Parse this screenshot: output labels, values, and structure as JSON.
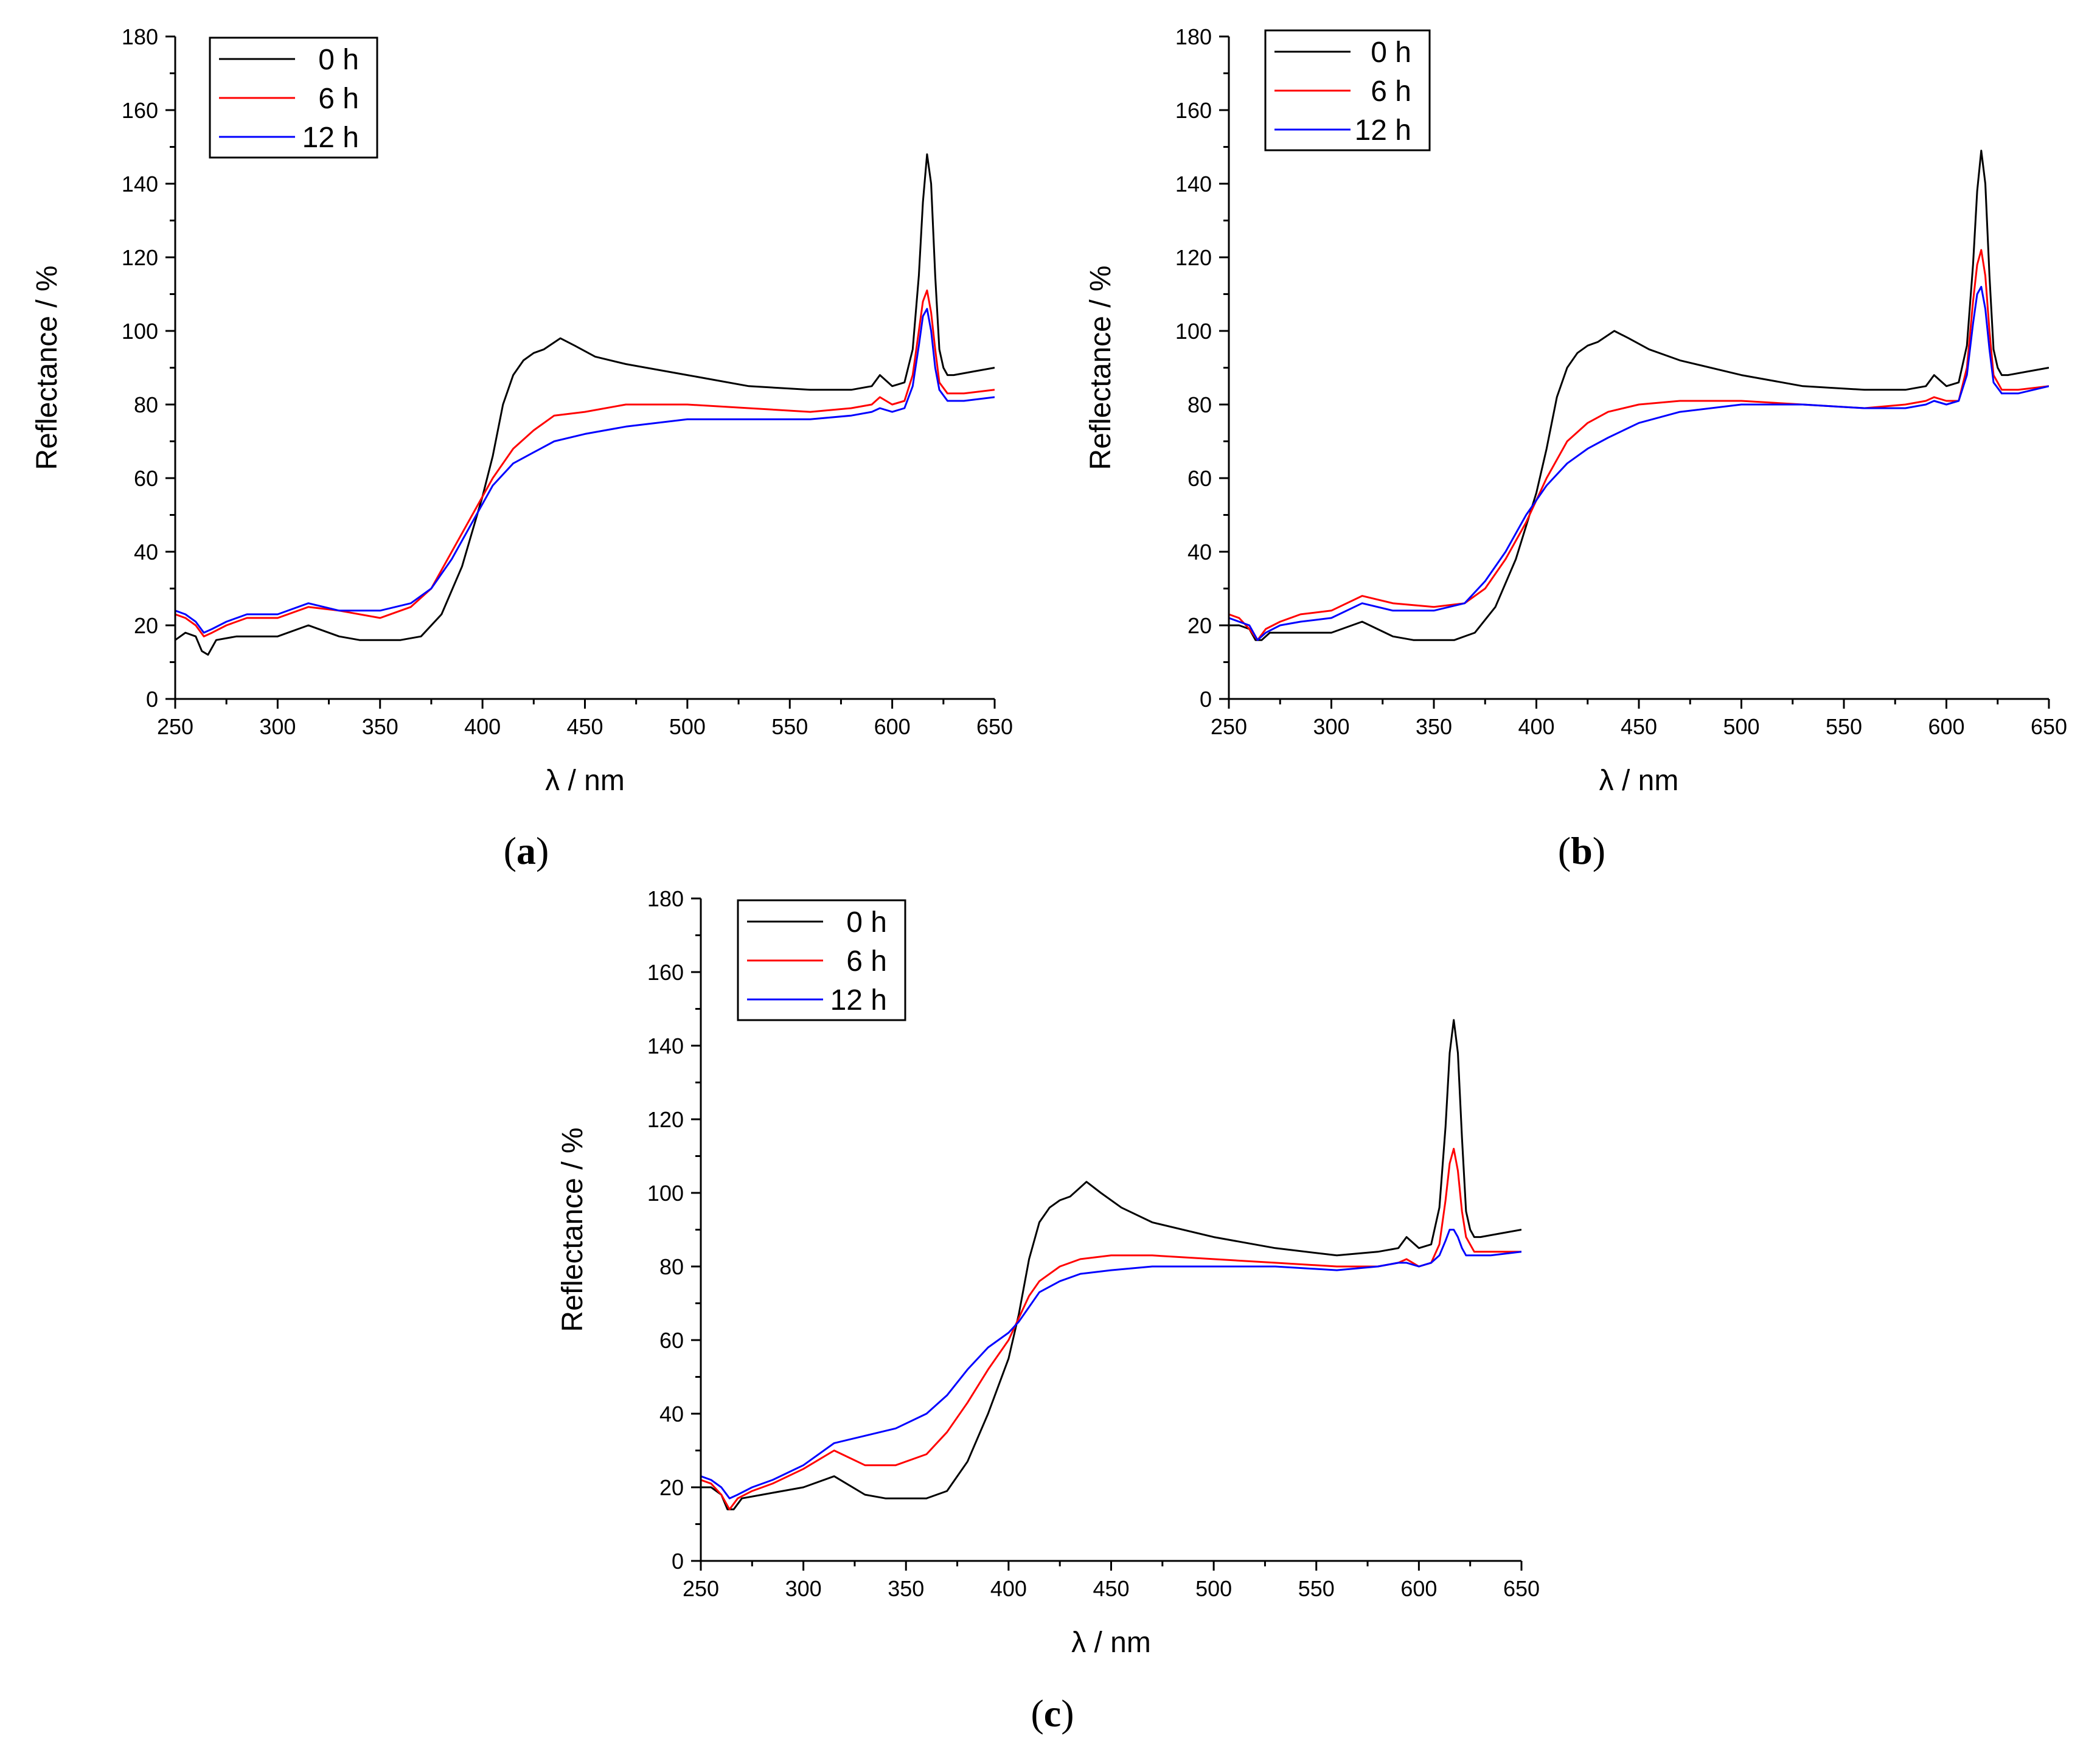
{
  "chart_data": [
    {
      "type": "line",
      "panel_label": "a",
      "xlabel": "λ / nm",
      "ylabel": "Reflectance / %",
      "xlim": [
        250,
        650
      ],
      "ylim": [
        0,
        180
      ],
      "xticks": [
        250,
        300,
        350,
        400,
        450,
        500,
        550,
        600,
        650
      ],
      "yticks": [
        0,
        20,
        40,
        60,
        80,
        100,
        120,
        140,
        160,
        180
      ],
      "legend_position": "top-left",
      "series": [
        {
          "name": "0 h",
          "color": "#000000",
          "x": [
            250,
            255,
            260,
            263,
            266,
            270,
            280,
            300,
            315,
            330,
            340,
            350,
            360,
            370,
            380,
            390,
            400,
            405,
            410,
            415,
            420,
            425,
            430,
            438,
            445,
            455,
            470,
            500,
            530,
            560,
            580,
            590,
            594,
            600,
            606,
            610,
            613,
            615,
            617,
            619,
            621,
            623,
            625,
            627,
            630,
            640,
            650
          ],
          "y": [
            16,
            18,
            17,
            13,
            12,
            16,
            17,
            17,
            20,
            17,
            16,
            16,
            16,
            17,
            23,
            36,
            55,
            66,
            80,
            88,
            92,
            94,
            95,
            98,
            96,
            93,
            91,
            88,
            85,
            84,
            84,
            85,
            88,
            85,
            86,
            95,
            115,
            135,
            148,
            140,
            115,
            95,
            90,
            88,
            88,
            89,
            90
          ]
        },
        {
          "name": "6 h",
          "color": "#ff0000",
          "x": [
            250,
            255,
            260,
            264,
            268,
            275,
            285,
            300,
            315,
            330,
            350,
            365,
            375,
            385,
            395,
            405,
            415,
            425,
            435,
            450,
            470,
            500,
            530,
            560,
            580,
            590,
            594,
            600,
            606,
            610,
            613,
            615,
            617,
            619,
            621,
            623,
            627,
            635,
            650
          ],
          "y": [
            23,
            22,
            20,
            17,
            18,
            20,
            22,
            22,
            25,
            24,
            22,
            25,
            30,
            40,
            50,
            60,
            68,
            73,
            77,
            78,
            80,
            80,
            79,
            78,
            79,
            80,
            82,
            80,
            81,
            88,
            100,
            108,
            111,
            105,
            95,
            86,
            83,
            83,
            84
          ]
        },
        {
          "name": "12 h",
          "color": "#0000ff",
          "x": [
            250,
            255,
            260,
            264,
            268,
            275,
            285,
            300,
            315,
            330,
            350,
            365,
            375,
            385,
            395,
            405,
            415,
            425,
            435,
            450,
            470,
            500,
            530,
            560,
            580,
            590,
            594,
            600,
            606,
            610,
            613,
            615,
            617,
            619,
            621,
            623,
            627,
            635,
            650
          ],
          "y": [
            24,
            23,
            21,
            18,
            19,
            21,
            23,
            23,
            26,
            24,
            24,
            26,
            30,
            38,
            48,
            58,
            64,
            67,
            70,
            72,
            74,
            76,
            76,
            76,
            77,
            78,
            79,
            78,
            79,
            85,
            96,
            104,
            106,
            100,
            90,
            84,
            81,
            81,
            82
          ]
        }
      ]
    },
    {
      "type": "line",
      "panel_label": "b",
      "xlabel": "λ / nm",
      "ylabel": "Reflectance / %",
      "xlim": [
        250,
        650
      ],
      "ylim": [
        0,
        180
      ],
      "xticks": [
        250,
        300,
        350,
        400,
        450,
        500,
        550,
        600,
        650
      ],
      "yticks": [
        0,
        20,
        40,
        60,
        80,
        100,
        120,
        140,
        160,
        180
      ],
      "legend_position": "top-left",
      "series": [
        {
          "name": "0 h",
          "color": "#000000",
          "x": [
            250,
            255,
            260,
            263,
            266,
            270,
            280,
            300,
            315,
            330,
            340,
            350,
            360,
            370,
            380,
            390,
            400,
            405,
            410,
            415,
            420,
            425,
            430,
            438,
            445,
            455,
            470,
            500,
            530,
            560,
            580,
            590,
            594,
            600,
            606,
            610,
            613,
            615,
            617,
            619,
            621,
            623,
            625,
            627,
            630,
            640,
            650
          ],
          "y": [
            20,
            20,
            19,
            16,
            16,
            18,
            18,
            18,
            21,
            17,
            16,
            16,
            16,
            18,
            25,
            38,
            56,
            68,
            82,
            90,
            94,
            96,
            97,
            100,
            98,
            95,
            92,
            88,
            85,
            84,
            84,
            85,
            88,
            85,
            86,
            96,
            118,
            138,
            149,
            140,
            115,
            95,
            90,
            88,
            88,
            89,
            90
          ]
        },
        {
          "name": "6 h",
          "color": "#ff0000",
          "x": [
            250,
            255,
            260,
            264,
            268,
            275,
            285,
            300,
            315,
            330,
            350,
            365,
            375,
            385,
            395,
            405,
            415,
            425,
            435,
            450,
            470,
            500,
            530,
            560,
            580,
            590,
            594,
            600,
            606,
            610,
            613,
            615,
            617,
            619,
            621,
            623,
            627,
            635,
            650
          ],
          "y": [
            23,
            22,
            19,
            16,
            19,
            21,
            23,
            24,
            28,
            26,
            25,
            26,
            30,
            38,
            48,
            60,
            70,
            75,
            78,
            80,
            81,
            81,
            80,
            79,
            80,
            81,
            82,
            81,
            81,
            90,
            108,
            118,
            122,
            115,
            100,
            88,
            84,
            84,
            85
          ]
        },
        {
          "name": "12 h",
          "color": "#0000ff",
          "x": [
            250,
            255,
            260,
            264,
            268,
            275,
            285,
            300,
            315,
            330,
            350,
            365,
            375,
            385,
            395,
            405,
            415,
            425,
            435,
            450,
            470,
            500,
            530,
            560,
            580,
            590,
            594,
            600,
            606,
            610,
            613,
            615,
            617,
            619,
            621,
            623,
            627,
            635,
            650
          ],
          "y": [
            22,
            21,
            20,
            16,
            18,
            20,
            21,
            22,
            26,
            24,
            24,
            26,
            32,
            40,
            50,
            58,
            64,
            68,
            71,
            75,
            78,
            80,
            80,
            79,
            79,
            80,
            81,
            80,
            81,
            88,
            102,
            110,
            112,
            106,
            95,
            86,
            83,
            83,
            85
          ]
        }
      ]
    },
    {
      "type": "line",
      "panel_label": "c",
      "xlabel": "λ / nm",
      "ylabel": "Reflectance / %",
      "xlim": [
        250,
        650
      ],
      "ylim": [
        0,
        180
      ],
      "xticks": [
        250,
        300,
        350,
        400,
        450,
        500,
        550,
        600,
        650
      ],
      "yticks": [
        0,
        20,
        40,
        60,
        80,
        100,
        120,
        140,
        160,
        180
      ],
      "legend_position": "top-left",
      "series": [
        {
          "name": "0 h",
          "color": "#000000",
          "x": [
            250,
            255,
            260,
            263,
            266,
            270,
            280,
            300,
            315,
            330,
            340,
            350,
            360,
            370,
            380,
            390,
            400,
            405,
            410,
            415,
            420,
            425,
            430,
            438,
            445,
            455,
            470,
            500,
            530,
            560,
            580,
            590,
            594,
            600,
            606,
            610,
            613,
            615,
            617,
            619,
            621,
            623,
            625,
            627,
            630,
            640,
            650
          ],
          "y": [
            20,
            20,
            18,
            14,
            14,
            17,
            18,
            20,
            23,
            18,
            17,
            17,
            17,
            19,
            27,
            40,
            55,
            67,
            82,
            92,
            96,
            98,
            99,
            103,
            100,
            96,
            92,
            88,
            85,
            83,
            84,
            85,
            88,
            85,
            86,
            96,
            118,
            138,
            147,
            138,
            115,
            95,
            90,
            88,
            88,
            89,
            90
          ]
        },
        {
          "name": "6 h",
          "color": "#ff0000",
          "x": [
            250,
            255,
            260,
            264,
            268,
            275,
            285,
            300,
            315,
            330,
            345,
            360,
            370,
            380,
            390,
            400,
            405,
            410,
            415,
            425,
            435,
            450,
            470,
            500,
            530,
            560,
            580,
            590,
            594,
            600,
            606,
            610,
            613,
            615,
            617,
            619,
            621,
            623,
            627,
            635,
            650
          ],
          "y": [
            22,
            21,
            18,
            14,
            17,
            19,
            21,
            25,
            30,
            26,
            26,
            29,
            35,
            43,
            52,
            60,
            66,
            72,
            76,
            80,
            82,
            83,
            83,
            82,
            81,
            80,
            80,
            81,
            82,
            80,
            81,
            86,
            98,
            108,
            112,
            106,
            95,
            88,
            84,
            84,
            84
          ]
        },
        {
          "name": "12 h",
          "color": "#0000ff",
          "x": [
            250,
            255,
            260,
            264,
            268,
            275,
            285,
            300,
            315,
            330,
            345,
            360,
            370,
            380,
            390,
            400,
            405,
            410,
            415,
            425,
            435,
            450,
            470,
            500,
            530,
            560,
            580,
            590,
            594,
            600,
            606,
            610,
            613,
            615,
            617,
            619,
            621,
            623,
            627,
            635,
            650
          ],
          "y": [
            23,
            22,
            20,
            17,
            18,
            20,
            22,
            26,
            32,
            34,
            36,
            40,
            45,
            52,
            58,
            62,
            65,
            69,
            73,
            76,
            78,
            79,
            80,
            80,
            80,
            79,
            80,
            81,
            81,
            80,
            81,
            83,
            87,
            90,
            90,
            88,
            85,
            83,
            83,
            83,
            84
          ]
        }
      ]
    }
  ]
}
